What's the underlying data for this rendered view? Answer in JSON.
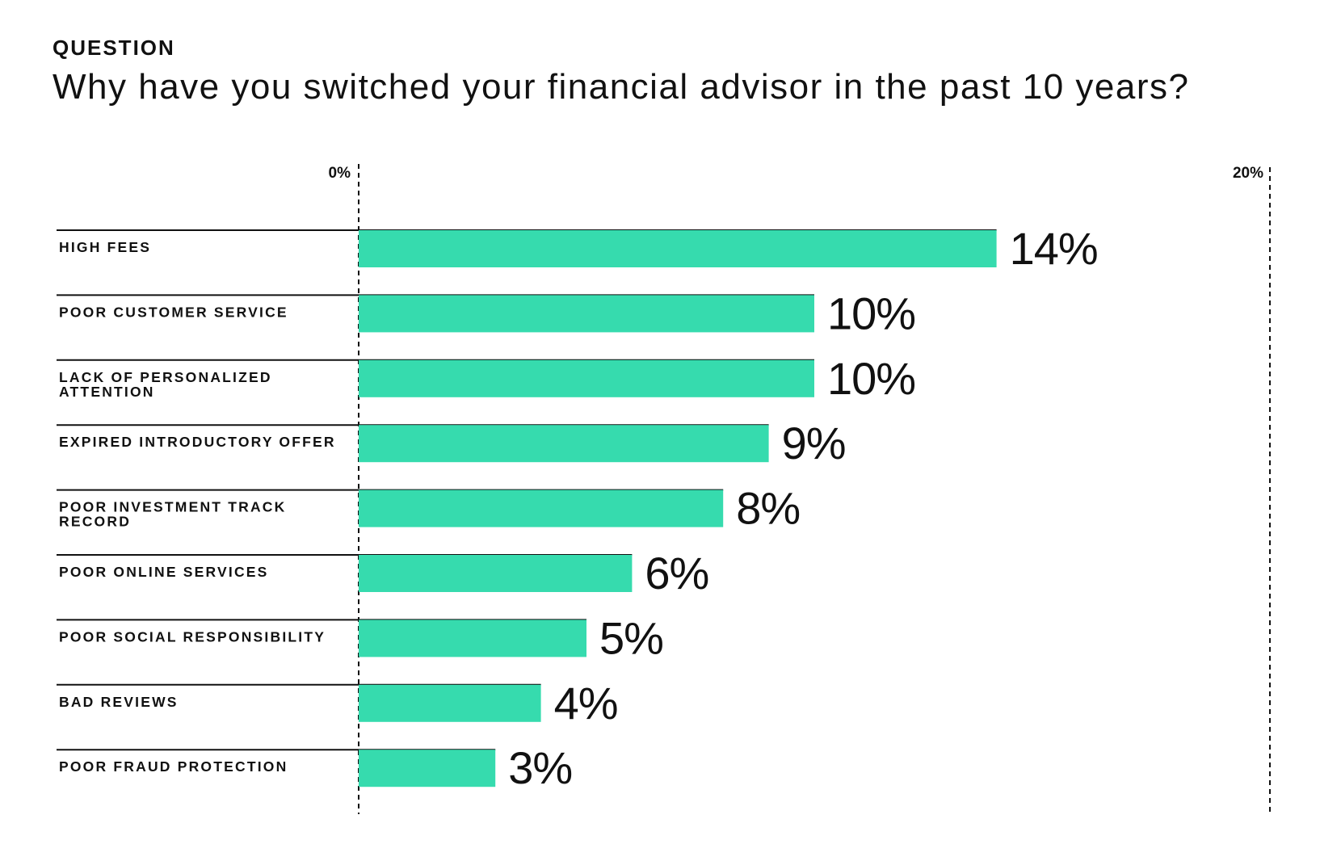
{
  "header": {
    "kicker": "QUESTION",
    "question": "Why have you switched your financial advisor in the past 10 years?"
  },
  "colors": {
    "bar": "#36dbae",
    "text": "#111111",
    "rule": "#111111"
  },
  "chart_data": {
    "type": "bar",
    "orientation": "horizontal",
    "title": "Why have you switched your financial advisor in the past 10 years?",
    "xlim": [
      0,
      20
    ],
    "x_ticks": [
      "0%",
      "20%"
    ],
    "grid": false,
    "categories": [
      [
        "HIGH FEES"
      ],
      [
        "POOR CUSTOMER SERVICE"
      ],
      [
        "LACK OF PERSONALIZED",
        "ATTENTION"
      ],
      [
        "EXPIRED INTRODUCTORY OFFER"
      ],
      [
        "POOR INVESTMENT TRACK",
        "RECORD"
      ],
      [
        "POOR ONLINE SERVICES"
      ],
      [
        "POOR SOCIAL RESPONSIBILITY"
      ],
      [
        "BAD REVIEWS"
      ],
      [
        "POOR FRAUD PROTECTION"
      ]
    ],
    "values": [
      14,
      10,
      10,
      9,
      8,
      6,
      5,
      4,
      3
    ],
    "value_labels": [
      "14%",
      "10%",
      "10%",
      "9%",
      "8%",
      "6%",
      "5%",
      "4%",
      "3%"
    ]
  }
}
